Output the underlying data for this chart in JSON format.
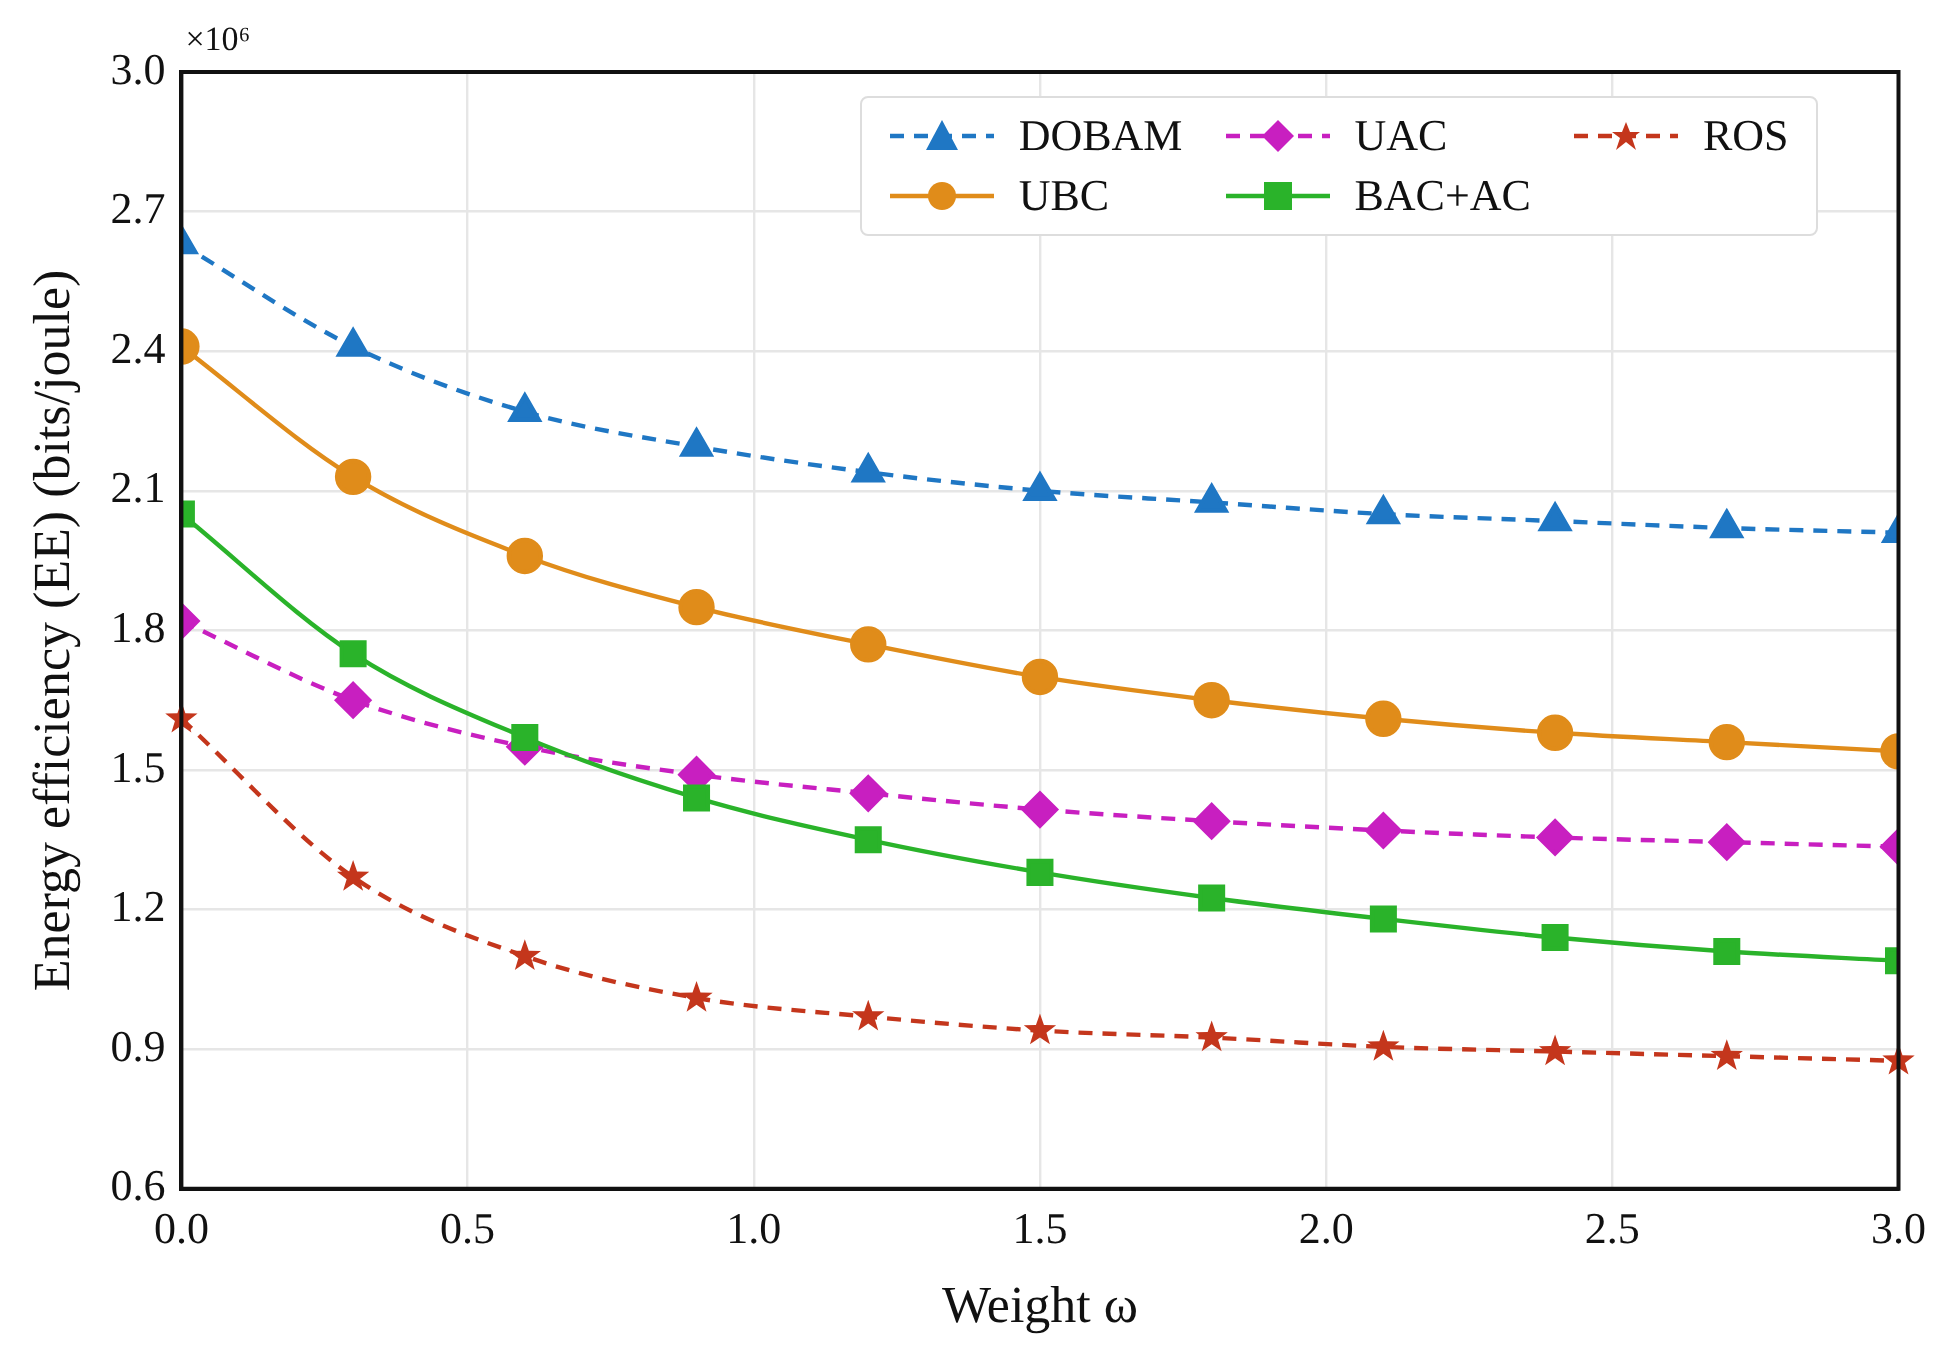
{
  "chart_data": {
    "type": "line",
    "xlabel": "Weight ω",
    "ylabel": "Energy efficiency (EE) (bits/joule)",
    "annotations": [
      "×10⁶"
    ],
    "x": [
      0,
      0.3,
      0.6,
      0.9,
      1.2,
      1.5,
      1.8,
      2.1,
      2.4,
      2.7,
      3.0
    ],
    "xlim": [
      0,
      3.0
    ],
    "xticks": [
      {
        "value": 0,
        "label": "0.0"
      },
      {
        "value": 0.5,
        "label": "0.5"
      },
      {
        "value": 1,
        "label": "1.0"
      },
      {
        "value": 1.5,
        "label": "1.5"
      },
      {
        "value": 2,
        "label": "2.0"
      },
      {
        "value": 2.5,
        "label": "2.5"
      },
      {
        "value": 3,
        "label": "3.0"
      }
    ],
    "ylim": [
      0.6,
      3.0
    ],
    "yticks": [
      {
        "value": 0.6,
        "label": "0.6"
      },
      {
        "value": 0.9,
        "label": "0.9"
      },
      {
        "value": 1.2,
        "label": "1.2"
      },
      {
        "value": 1.5,
        "label": "1.5"
      },
      {
        "value": 1.8,
        "label": "1.8"
      },
      {
        "value": 2.1,
        "label": "2.1"
      },
      {
        "value": 2.4,
        "label": "2.4"
      },
      {
        "value": 2.7,
        "label": "2.7"
      },
      {
        "value": 3.0,
        "label": "3.0"
      }
    ],
    "grid": true,
    "legend": "top right",
    "series": [
      {
        "name": "DOBAM",
        "color": "#1f77c4",
        "marker": "triangle",
        "line_style": "dashed",
        "values": [
          2.63,
          2.41,
          2.27,
          2.195,
          2.14,
          2.1,
          2.075,
          2.05,
          2.035,
          2.02,
          2.01
        ]
      },
      {
        "name": "UBC",
        "color": "#e08c1a",
        "marker": "circle",
        "line_style": "solid",
        "values": [
          2.41,
          2.13,
          1.96,
          1.85,
          1.77,
          1.7,
          1.65,
          1.61,
          1.58,
          1.56,
          1.54
        ]
      },
      {
        "name": "UAC",
        "color": "#c81fc0",
        "marker": "diamond",
        "line_style": "dashed",
        "values": [
          1.82,
          1.65,
          1.55,
          1.49,
          1.45,
          1.415,
          1.39,
          1.37,
          1.355,
          1.345,
          1.335
        ]
      },
      {
        "name": "BAC+AC",
        "color": "#2ab32a",
        "marker": "square",
        "line_style": "solid",
        "values": [
          2.05,
          1.75,
          1.57,
          1.44,
          1.35,
          1.28,
          1.225,
          1.18,
          1.14,
          1.11,
          1.09
        ]
      },
      {
        "name": "ROS",
        "color": "#c4361c",
        "marker": "star",
        "line_style": "dashed",
        "values": [
          1.61,
          1.27,
          1.1,
          1.01,
          0.97,
          0.94,
          0.925,
          0.905,
          0.895,
          0.885,
          0.875
        ]
      }
    ]
  }
}
